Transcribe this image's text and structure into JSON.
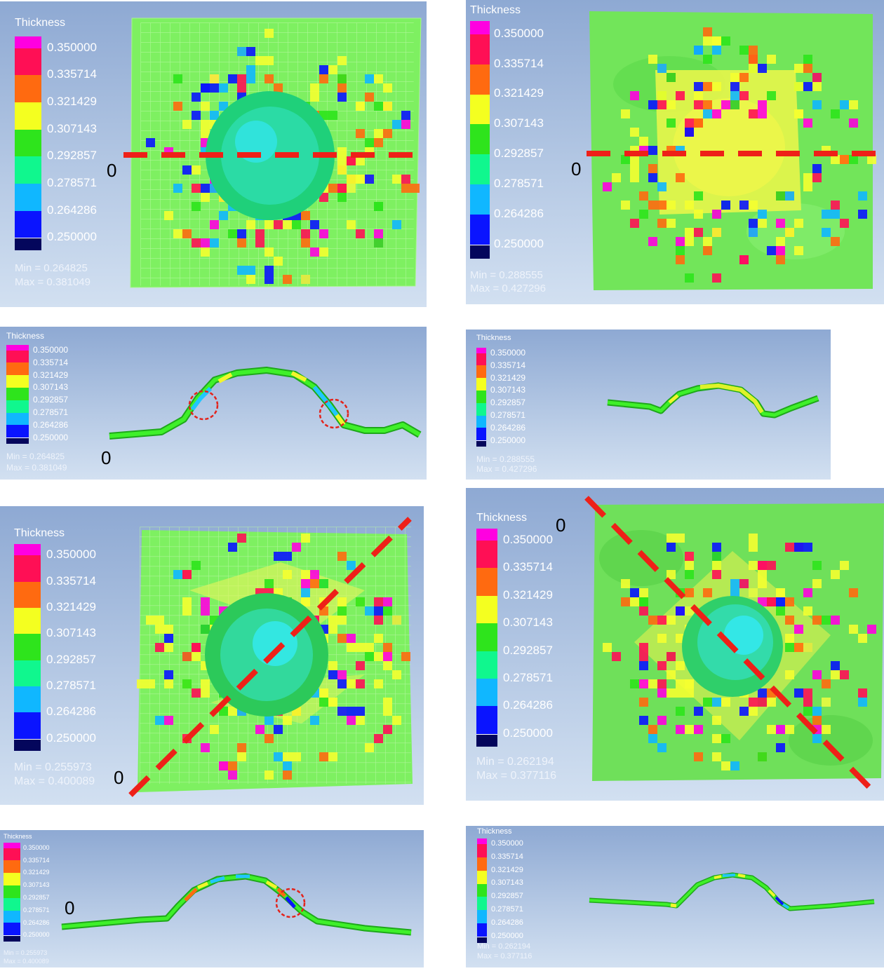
{
  "legend_scale": {
    "title": "Thickness",
    "ticks": [
      "0.350000",
      "0.335714",
      "0.321429",
      "0.307143",
      "0.292857",
      "0.278571",
      "0.264286",
      "0.250000"
    ],
    "colors": [
      "#ff00e0",
      "#ff0f55",
      "#ff6a10",
      "#f4ff20",
      "#2ee41c",
      "#10f78e",
      "#10b7ff",
      "#0a14ff",
      "#04065c"
    ]
  },
  "origin_label": "0",
  "panels": [
    {
      "id": "top-left-3d",
      "min": "Min =  0.264825",
      "max": "Max =  0.381049"
    },
    {
      "id": "top-right-3d",
      "min": "Min =  0.288555",
      "max": "Max =  0.427296"
    },
    {
      "id": "second-left-section",
      "min": "Min =  0.264825",
      "max": "Max =  0.381049"
    },
    {
      "id": "second-right-section",
      "min": "Min =  0.288555",
      "max": "Max =  0.427296"
    },
    {
      "id": "third-left-3d",
      "min": "Min =  0.255973",
      "max": "Max =  0.400089"
    },
    {
      "id": "third-right-3d",
      "min": "Min =  0.262194",
      "max": "Max =  0.377116"
    },
    {
      "id": "bottom-left-section",
      "min": "Min =  0.255973",
      "max": "Max =  0.400089"
    },
    {
      "id": "bottom-right-section",
      "min": "Min =  0.262194",
      "max": "Max =  0.377116"
    }
  ]
}
